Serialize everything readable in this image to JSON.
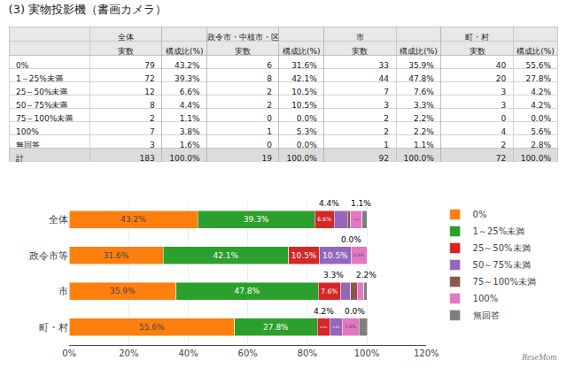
{
  "chart_data": [
    {
      "type": "table",
      "title": "(3) 実物投影機（書画カメラ）",
      "categories": [
        "0%",
        "1～25%未満",
        "25～50%未満",
        "50～75%未満",
        "75～100%未満",
        "100%",
        "無回答",
        "計"
      ],
      "series": [
        {
          "name": "実数",
          "group": "全体",
          "values": [
            79,
            72,
            12,
            8,
            2,
            7,
            3,
            183
          ]
        },
        {
          "name": "構成比(%)",
          "group": "全体",
          "values": [
            43.2,
            39.3,
            6.6,
            4.4,
            1.1,
            3.8,
            1.6,
            100.0
          ],
          "value_labels": [
            "43.2%",
            "39.3%",
            "6.6%",
            "4.4%",
            "1.1%",
            "3.8%",
            "1.6%",
            "100.0%"
          ]
        },
        {
          "name": "実数",
          "group": "政令市・中核市・区",
          "values": [
            6,
            8,
            2,
            2,
            0,
            1,
            0,
            19
          ]
        },
        {
          "name": "構成比(%)",
          "group": "政令市・中核市・区",
          "values": [
            31.6,
            42.1,
            10.5,
            10.5,
            0.0,
            5.3,
            0.0,
            100.0
          ],
          "value_labels": [
            "31.6%",
            "42.1%",
            "10.5%",
            "10.5%",
            "0.0%",
            "5.3%",
            "0.0%",
            "100.0%"
          ]
        },
        {
          "name": "実数",
          "group": "市",
          "values": [
            33,
            44,
            7,
            3,
            2,
            2,
            1,
            92
          ]
        },
        {
          "name": "構成比(%)",
          "group": "市",
          "values": [
            35.9,
            47.8,
            7.6,
            3.3,
            2.2,
            2.2,
            1.1,
            100.0
          ],
          "value_labels": [
            "35.9%",
            "47.8%",
            "7.6%",
            "3.3%",
            "2.2%",
            "2.2%",
            "1.1%",
            "100.0%"
          ]
        },
        {
          "name": "実数",
          "group": "町・村",
          "values": [
            40,
            20,
            3,
            3,
            0,
            4,
            2,
            72
          ]
        },
        {
          "name": "構成比(%)",
          "group": "町・村",
          "values": [
            55.6,
            27.8,
            4.2,
            4.2,
            0.0,
            5.6,
            2.8,
            100.0
          ],
          "value_labels": [
            "55.6%",
            "27.8%",
            "4.2%",
            "4.2%",
            "0.0%",
            "5.6%",
            "2.8%",
            "100.0%"
          ]
        }
      ]
    },
    {
      "type": "bar",
      "orientation": "horizontal",
      "stacked": true,
      "data_labels": true,
      "grid": true,
      "legend": "right",
      "categories": [
        "全体",
        "政令市等",
        "市",
        "町・村"
      ],
      "series": [
        {
          "name": "0%",
          "values": [
            43.2,
            31.6,
            35.9,
            55.6
          ],
          "value_labels": [
            "43.2%",
            "31.6%",
            "35.9%",
            "55.6%"
          ]
        },
        {
          "name": "1～25%未満",
          "values": [
            39.3,
            42.1,
            47.8,
            27.8
          ],
          "value_labels": [
            "39.3%",
            "42.1%",
            "47.8%",
            "27.8%"
          ]
        },
        {
          "name": "25～50%未満",
          "values": [
            6.6,
            10.5,
            7.6,
            4.2
          ],
          "value_labels": [
            "6.6%",
            "10.5%",
            "7.6%",
            "4.2%"
          ]
        },
        {
          "name": "50～75%未満",
          "values": [
            4.4,
            10.5,
            3.3,
            4.2
          ],
          "value_labels": [
            null,
            "10.5%",
            null,
            "4.2%"
          ]
        },
        {
          "name": "75～100%未満",
          "values": [
            1.1,
            0.0,
            2.2,
            0.0
          ]
        },
        {
          "name": "100%",
          "values": [
            3.8,
            5.3,
            2.2,
            5.6
          ],
          "value_labels": [
            "3.8%",
            "5.3%",
            null,
            "5.6%"
          ]
        },
        {
          "name": "無回答",
          "values": [
            1.6,
            0.0,
            1.1,
            2.8
          ]
        }
      ],
      "xlim": [
        0,
        120
      ],
      "xticks": [
        {
          "value": 0,
          "label": "0%"
        },
        {
          "value": 20,
          "label": "20%"
        },
        {
          "value": 40,
          "label": "40%"
        },
        {
          "value": 60,
          "label": "60%"
        },
        {
          "value": 80,
          "label": "80%"
        },
        {
          "value": 100,
          "label": "100%"
        },
        {
          "value": 120,
          "label": "120%"
        }
      ],
      "annotations": [
        {
          "text": "4.4%",
          "category": "全体",
          "series": "50～75%未満"
        },
        {
          "text": "1.1%",
          "category": "全体",
          "series": "75～100%未満"
        },
        {
          "text": "0.0%",
          "category": "政令市等",
          "series": "75～100%未満"
        },
        {
          "text": "3.3%",
          "category": "市",
          "series": "50～75%未満"
        },
        {
          "text": "2.2%",
          "category": "市",
          "series": "75～100%未満"
        },
        {
          "text": "4.2%",
          "category": "町・村",
          "series": "50～75%未満"
        },
        {
          "text": "0.0%",
          "category": "町・村",
          "series": "75～100%未満"
        },
        {
          "text": "ReseMom"
        }
      ]
    }
  ]
}
